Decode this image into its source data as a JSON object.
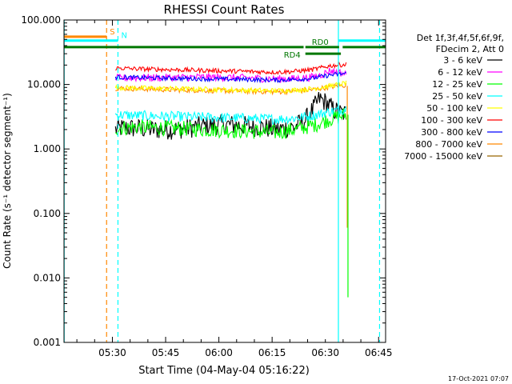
{
  "chart_data": {
    "type": "line",
    "title": "RHESSI Count Rates",
    "xlabel": "Start Time (04-May-04 05:16:22)",
    "ylabel": "Count Rate (s⁻¹ detector segment⁻¹)",
    "x_unit": "minutes after 05:16:22",
    "xlim": [
      0,
      90.6
    ],
    "ylim": [
      0.001,
      100
    ],
    "y_scale": "log",
    "grid": false,
    "x_ticks": [
      {
        "value": 13.63,
        "label": "05:30"
      },
      {
        "value": 28.63,
        "label": "05:45"
      },
      {
        "value": 43.63,
        "label": "06:00"
      },
      {
        "value": 58.63,
        "label": "06:15"
      },
      {
        "value": 73.63,
        "label": "06:30"
      },
      {
        "value": 88.63,
        "label": "06:45"
      }
    ],
    "y_ticks": [
      {
        "value": 100,
        "label": "100.000"
      },
      {
        "value": 10,
        "label": "10.000"
      },
      {
        "value": 1,
        "label": "1.000"
      },
      {
        "value": 0.1,
        "label": "0.100"
      },
      {
        "value": 0.01,
        "label": "0.010"
      },
      {
        "value": 0.001,
        "label": "0.001"
      }
    ],
    "legend": {
      "placement": "right",
      "header": [
        "Det 1f,3f,4f,5f,6f,9f,",
        "FDecim 2, Att 0"
      ]
    },
    "series": [
      {
        "name": "3 - 6 keV",
        "color": "#000000",
        "x": [
          14.5,
          16,
          20,
          25,
          30,
          35,
          40,
          45,
          50,
          55,
          60,
          65,
          68,
          70,
          72,
          74,
          76,
          78,
          79.5
        ],
        "y": [
          2.0,
          2.1,
          2.1,
          2.0,
          2.0,
          2.1,
          2.3,
          2.4,
          2.3,
          2.2,
          2.0,
          2.2,
          2.8,
          4.0,
          6.0,
          5.2,
          4.0,
          3.6,
          3.5
        ],
        "noise": 0.16
      },
      {
        "name": "6 - 12 keV",
        "color": "#ff00ff",
        "x": [
          14.5,
          20,
          30,
          40,
          50,
          60,
          65,
          70,
          73,
          75,
          77,
          79.5
        ],
        "y": [
          12.5,
          12.7,
          12.8,
          13.0,
          12.7,
          12.2,
          12.3,
          13.0,
          14.5,
          16.5,
          15.5,
          14.5
        ],
        "noise": 0.06
      },
      {
        "name": "12 - 25 keV",
        "color": "#00ff00",
        "x": [
          14.5,
          20,
          30,
          40,
          50,
          60,
          65,
          70,
          75,
          79.5
        ],
        "y": [
          2.1,
          2.2,
          2.1,
          2.0,
          1.9,
          1.8,
          2.0,
          2.3,
          2.9,
          3.4
        ],
        "noise": 0.12
      },
      {
        "name": "25 - 50 keV",
        "color": "#00ffff",
        "x": [
          14.5,
          20,
          30,
          40,
          50,
          60,
          65,
          70,
          75,
          79.5
        ],
        "y": [
          3.4,
          3.3,
          3.2,
          3.1,
          3.0,
          2.9,
          3.0,
          3.3,
          3.8,
          4.2
        ],
        "noise": 0.08
      },
      {
        "name": "50 - 100 keV",
        "color": "#ffff00",
        "x": [
          14.5,
          20,
          30,
          40,
          50,
          60,
          65,
          70,
          75,
          79.5
        ],
        "y": [
          9.0,
          8.8,
          8.6,
          8.4,
          8.2,
          8.0,
          8.2,
          8.6,
          9.5,
          10.5
        ],
        "noise": 0.04
      },
      {
        "name": "100 - 300 keV",
        "color": "#ff0000",
        "x": [
          14.5,
          20,
          30,
          40,
          50,
          60,
          65,
          70,
          75,
          79.5
        ],
        "y": [
          18.0,
          17.5,
          17.0,
          16.5,
          16.0,
          15.5,
          16.0,
          17.0,
          19.5,
          20.5
        ],
        "noise": 0.035
      },
      {
        "name": "300 - 800 keV",
        "color": "#0000ff",
        "x": [
          14.5,
          20,
          30,
          40,
          50,
          60,
          65,
          70,
          75,
          79.5
        ],
        "y": [
          13.0,
          12.8,
          12.5,
          12.2,
          12.0,
          11.7,
          12.0,
          12.5,
          14.0,
          14.8
        ],
        "noise": 0.035
      },
      {
        "name": "800 - 7000 keV",
        "color": "#ff8800",
        "x": [
          14.5,
          20,
          30,
          40,
          50,
          60,
          65,
          70,
          75,
          79.5
        ],
        "y": [
          8.8,
          8.6,
          8.3,
          8.1,
          7.9,
          7.7,
          7.9,
          8.3,
          9.2,
          9.8
        ],
        "noise": 0.04
      },
      {
        "name": "7000 - 15000 keV",
        "color": "#996600",
        "x": [],
        "y": [],
        "noise": 0
      }
    ],
    "drops": [
      {
        "color": "#ff8800",
        "x": 79.8,
        "from": 9.5,
        "to": 0.06
      },
      {
        "color": "#00ff00",
        "x": 80.0,
        "from": 3.4,
        "to": 0.005
      }
    ],
    "vlines": [
      {
        "x": 0.05,
        "color": "#00ffff",
        "style": "solid"
      },
      {
        "x": 12.0,
        "color": "#ff8800",
        "style": "dashed"
      },
      {
        "x": 15.2,
        "color": "#00ffff",
        "style": "dashed"
      },
      {
        "x": 77.3,
        "color": "#00ffff",
        "style": "solid"
      },
      {
        "x": 88.9,
        "color": "#00ffff",
        "style": "dashed"
      }
    ],
    "flag_bars": [
      {
        "label": "S",
        "color": "#ff8800",
        "x0": 0,
        "x1": 12.0,
        "y": 55
      },
      {
        "label": "N",
        "color": "#00ffff",
        "x0": 0,
        "x1": 15.2,
        "y": 48
      },
      {
        "label": "",
        "color": "#00ffff",
        "x0": 77.3,
        "x1": 90.6,
        "y": 48
      },
      {
        "label": "",
        "color": "#007700",
        "x0": 0,
        "x1": 67.5,
        "y": 38
      },
      {
        "label": "RD0",
        "color": "#007700",
        "x0": 68.0,
        "x1": 77.5,
        "y": 38
      },
      {
        "label": "",
        "color": "#007700",
        "x0": 78.5,
        "x1": 90.6,
        "y": 38
      },
      {
        "label": "RD4",
        "color": "#007700",
        "x0": 68.0,
        "x1": 78.0,
        "y": 30
      }
    ],
    "timestamp": "17-Oct-2021 07:07"
  }
}
